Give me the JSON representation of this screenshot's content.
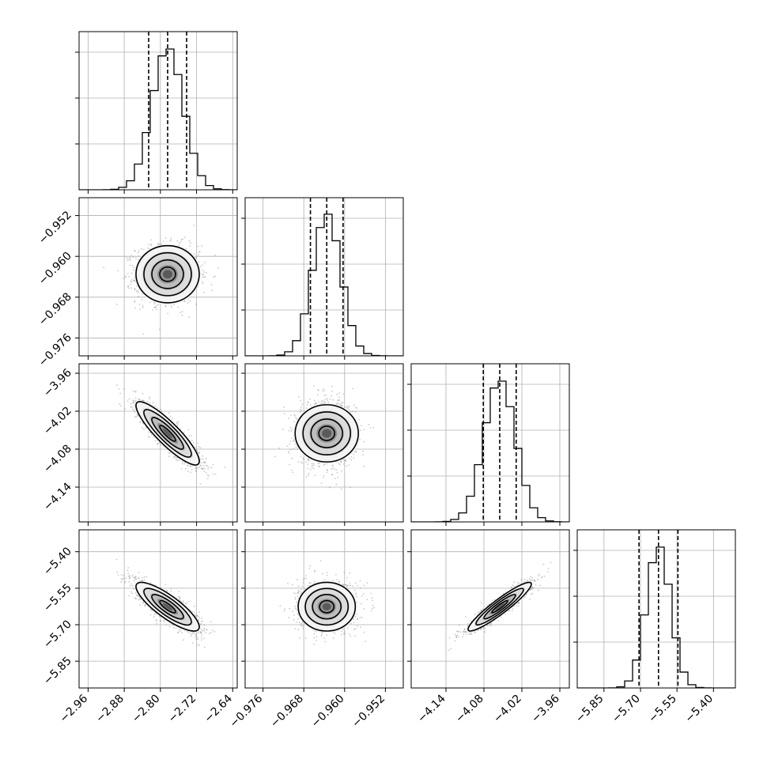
{
  "chart_data": {
    "type": "corner",
    "title": "",
    "grid": true,
    "parameters": [
      {
        "range": [
          -2.98,
          -2.63
        ],
        "ticks": [
          -2.96,
          -2.88,
          -2.8,
          -2.72,
          -2.64
        ],
        "tick_labels": [
          "−2.96",
          "−2.88",
          "−2.80",
          "−2.72",
          "−2.64"
        ],
        "mean": -2.784,
        "sd": 0.035,
        "quantiles": [
          -2.826,
          -2.784,
          -2.742
        ],
        "hist_peak": 1.0,
        "corr_with_prev": null
      },
      {
        "range": [
          -0.9795,
          -0.9485
        ],
        "ticks": [
          -0.976,
          -0.968,
          -0.96,
          -0.952
        ],
        "tick_labels": [
          "−0.976",
          "−0.968",
          "−0.960",
          "−0.952"
        ],
        "mean": -0.9635,
        "sd": 0.0028,
        "quantiles": [
          -0.9667,
          -0.9635,
          -0.9603
        ],
        "hist_peak": 1.0
      },
      {
        "range": [
          -4.195,
          -3.945
        ],
        "ticks": [
          -4.14,
          -4.08,
          -4.02,
          -3.96
        ],
        "tick_labels": [
          "−4.14",
          "−4.08",
          "−4.02",
          "−3.96"
        ],
        "mean": -4.055,
        "sd": 0.025,
        "quantiles": [
          -4.081,
          -4.055,
          -4.029
        ],
        "hist_peak": 1.0
      },
      {
        "range": [
          -5.96,
          -5.31
        ],
        "ticks": [
          -5.85,
          -5.7,
          -5.55,
          -5.4
        ],
        "tick_labels": [
          "−5.85",
          "−5.70",
          "−5.55",
          "−5.40"
        ],
        "mean": -5.626,
        "sd": 0.05,
        "quantiles": [
          -5.706,
          -5.626,
          -5.546
        ],
        "hist_peak": 1.0
      }
    ],
    "correlations": [
      {
        "row": 1,
        "col": 0,
        "rho": 0.0
      },
      {
        "row": 2,
        "col": 0,
        "rho": -0.88
      },
      {
        "row": 2,
        "col": 1,
        "rho": 0.0
      },
      {
        "row": 3,
        "col": 0,
        "rho": -0.83
      },
      {
        "row": 3,
        "col": 1,
        "rho": 0.0
      },
      {
        "row": 3,
        "col": 2,
        "rho": 0.93
      }
    ],
    "contour_levels_sigma": [
      0.5,
      1.0,
      1.5,
      2.0
    ],
    "colors": {
      "line": "#000000",
      "grid": "#b0b0b0",
      "points": "#888888"
    }
  }
}
